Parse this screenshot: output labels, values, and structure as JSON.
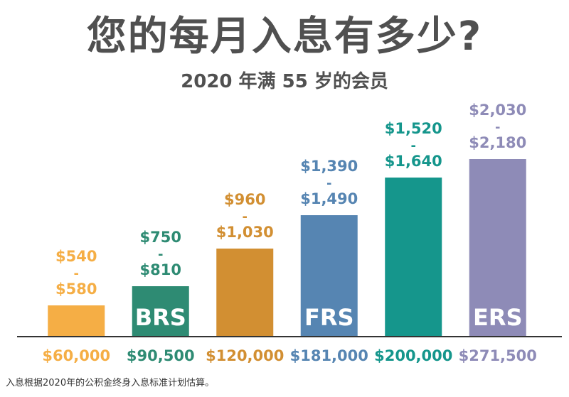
{
  "title": "您的每月入息有多少?",
  "subtitle": "2020 年满 55 岁的会员",
  "footnote": "入息根据2020年的公积金终身入息标准计划估算。",
  "chart_data": {
    "type": "bar",
    "categories": [
      "$60,000",
      "$90,500",
      "$120,000",
      "$181,000",
      "$200,000",
      "$271,500"
    ],
    "values": [
      60000,
      90500,
      120000,
      181000,
      200000,
      271500
    ],
    "bar_labels": [
      "",
      "BRS",
      "",
      "FRS",
      "",
      "ERS"
    ],
    "payout_ranges": [
      [
        "$540",
        "-",
        "$580"
      ],
      [
        "$750",
        "-",
        "$810"
      ],
      [
        "$960",
        "-",
        "$1,030"
      ],
      [
        "$1,390",
        "-",
        "$1,490"
      ],
      [
        "$1,520",
        "-",
        "$1,640"
      ],
      [
        "$2,030",
        "-",
        "$2,180"
      ]
    ],
    "colors": [
      "#F5AE45",
      "#2E8B73",
      "#D28F32",
      "#5685B2",
      "#15968C",
      "#8E8BB7"
    ],
    "text_colors": [
      "#F5AE45",
      "#2E8B73",
      "#D28F32",
      "#5685B2",
      "#15968C",
      "#8E8BB7"
    ],
    "ylim": [
      0,
      300000
    ],
    "grid": false,
    "xlabel": "",
    "ylabel": ""
  }
}
